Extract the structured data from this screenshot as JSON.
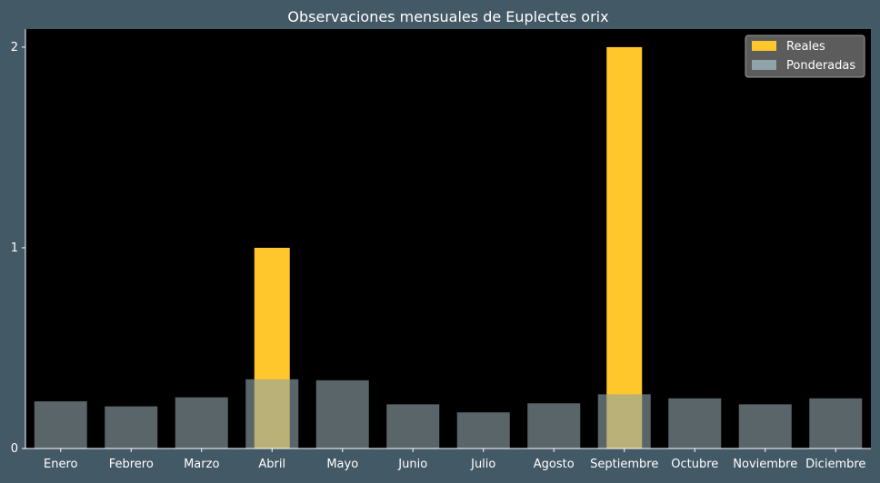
{
  "chart_data": {
    "type": "bar",
    "title": "Observaciones mensuales de Euplectes orix",
    "xlabel": "",
    "ylabel": "",
    "categories": [
      "Enero",
      "Febrero",
      "Marzo",
      "Abril",
      "Mayo",
      "Junio",
      "Julio",
      "Agosto",
      "Septiembre",
      "Octubre",
      "Noviembre",
      "Diciembre"
    ],
    "series": [
      {
        "name": "Reales",
        "color": "#FFC72C",
        "values": [
          0,
          0,
          0,
          1,
          0,
          0,
          0,
          0,
          2,
          0,
          0,
          0
        ]
      },
      {
        "name": "Ponderadas",
        "color": "#8FA3A8",
        "values": [
          0.235,
          0.21,
          0.255,
          0.345,
          0.34,
          0.22,
          0.18,
          0.225,
          0.27,
          0.25,
          0.22,
          0.25
        ]
      }
    ],
    "ylim": [
      0,
      2.09
    ],
    "yticks": [
      "0",
      "1",
      "2"
    ],
    "grid": false,
    "legend_position": "top-right",
    "colors": {
      "figure_background": "#435966",
      "plot_background": "#000000",
      "text": "#FFFFFF"
    }
  }
}
